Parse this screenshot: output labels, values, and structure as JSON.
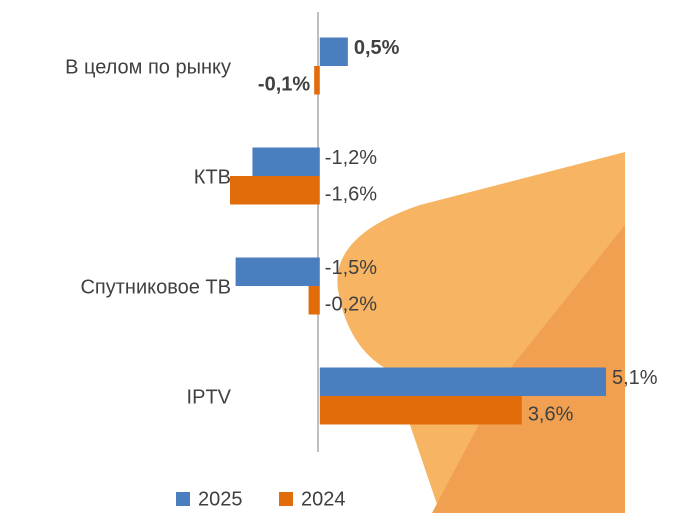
{
  "chart_data": {
    "type": "hbar",
    "categories": [
      "В целом по рынку",
      "КТВ",
      "Спутниковое ТВ",
      "IPTV"
    ],
    "series": [
      {
        "name": "2025",
        "color": "#4a7ebf",
        "values": [
          0.5,
          -1.2,
          -1.5,
          5.1
        ],
        "value_labels": [
          "0,5%",
          "-1,2%",
          "-1,5%",
          "5,1%"
        ]
      },
      {
        "name": "2024",
        "color": "#e36c0a",
        "values": [
          -0.1,
          -1.6,
          -0.2,
          3.6
        ],
        "value_labels": [
          "-0,1%",
          "-1,6%",
          "-0,2%",
          "3,6%"
        ]
      }
    ],
    "xlim": [
      -1.6,
      5.1
    ]
  }
}
